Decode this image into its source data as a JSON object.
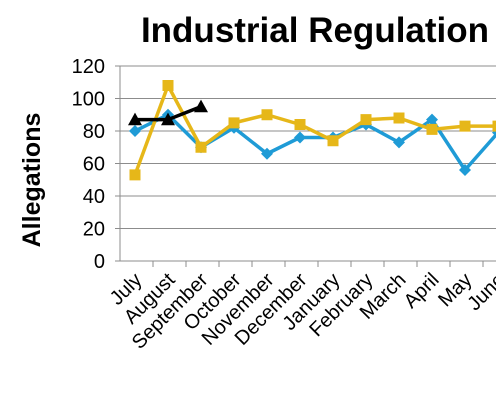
{
  "chart_data": {
    "type": "line",
    "title": "Industrial Regulation",
    "ylabel": "Allegations",
    "xlabel": "",
    "categories": [
      "July",
      "August",
      "September",
      "October",
      "November",
      "December",
      "January",
      "February",
      "March",
      "April",
      "May",
      "June"
    ],
    "ylim": [
      0,
      120
    ],
    "yticks": [
      0,
      20,
      40,
      60,
      80,
      100,
      120
    ],
    "grid": true,
    "legend": "none",
    "series": [
      {
        "color": "#1f9bd6",
        "marker": "diamond",
        "values": [
          80,
          90,
          70,
          82,
          66,
          76,
          76,
          84,
          73,
          87,
          56,
          79
        ]
      },
      {
        "color": "#e6b719",
        "marker": "square",
        "values": [
          53,
          108,
          70,
          85,
          90,
          84,
          74,
          87,
          88,
          81,
          83,
          83
        ]
      },
      {
        "color": "#000000",
        "marker": "triangle",
        "values": [
          87,
          87,
          95,
          null,
          null,
          null,
          null,
          null,
          null,
          null,
          null,
          null
        ]
      }
    ]
  }
}
